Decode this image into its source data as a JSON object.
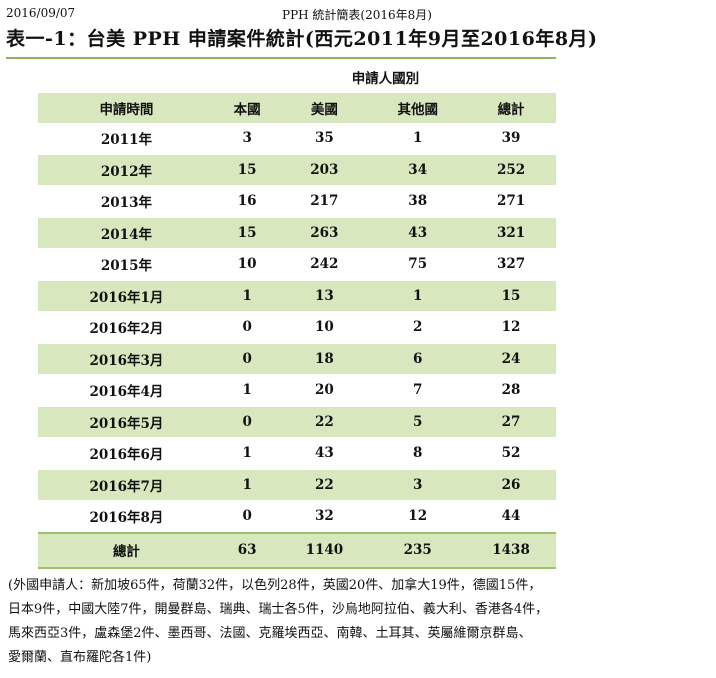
{
  "header": {
    "date": "2016/09/07",
    "doc_title": "PPH 統計簡表(2016年8月)"
  },
  "title": "表一-1：台美 PPH 申請案件統計(西元2011年9月至2016年8月)",
  "table": {
    "group_header": "申請人國別",
    "columns": [
      "申請時間",
      "本國",
      "美國",
      "其他國",
      "總計"
    ],
    "rows": [
      [
        "2011年",
        "3",
        "35",
        "1",
        "39"
      ],
      [
        "2012年",
        "15",
        "203",
        "34",
        "252"
      ],
      [
        "2013年",
        "16",
        "217",
        "38",
        "271"
      ],
      [
        "2014年",
        "15",
        "263",
        "43",
        "321"
      ],
      [
        "2015年",
        "10",
        "242",
        "75",
        "327"
      ],
      [
        "2016年1月",
        "1",
        "13",
        "1",
        "15"
      ],
      [
        "2016年2月",
        "0",
        "10",
        "2",
        "12"
      ],
      [
        "2016年3月",
        "0",
        "18",
        "6",
        "24"
      ],
      [
        "2016年4月",
        "1",
        "20",
        "7",
        "28"
      ],
      [
        "2016年5月",
        "0",
        "22",
        "5",
        "27"
      ],
      [
        "2016年6月",
        "1",
        "43",
        "8",
        "52"
      ],
      [
        "2016年7月",
        "1",
        "22",
        "3",
        "26"
      ],
      [
        "2016年8月",
        "0",
        "32",
        "12",
        "44"
      ]
    ],
    "total": [
      "總計",
      "63",
      "1140",
      "235",
      "1438"
    ]
  },
  "note": {
    "lines": [
      "(外國申請人：新加坡65件，荷蘭32件，以色列28件，英國20件、加拿大19件，德國15件，",
      "日本9件，中國大陸7件，開曼群島、瑞典、瑞士各5件，沙烏地阿拉伯、義大利、香港各4件，",
      "馬來西亞3件，盧森堡2件、墨西哥、法國、克羅埃西亞、南韓、土耳其、英屬維爾京群島、",
      "愛爾蘭、直布羅陀各1件)"
    ]
  },
  "colors": {
    "row_shade": "#d9e7bf",
    "rule": "#9fc06f"
  }
}
